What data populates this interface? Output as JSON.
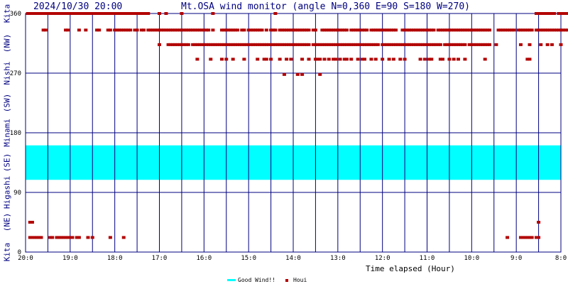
{
  "header": {
    "datetime": "2024/10/30 20:00",
    "title": "Mt.OSA wind monitor (angle N=0,360 E=90 S=180 W=270)"
  },
  "direction_labels": [
    {
      "text": "Kita",
      "y": 360
    },
    {
      "text": "(NW)",
      "y": 315
    },
    {
      "text": "Nishi",
      "y": 270
    },
    {
      "text": "(SW)",
      "y": 225
    },
    {
      "text": "Minami",
      "y": 180
    },
    {
      "text": "(SE)",
      "y": 135
    },
    {
      "text": "Higashi",
      "y": 90
    },
    {
      "text": "(NE)",
      "y": 45
    },
    {
      "text": "Kita",
      "y": 0
    }
  ],
  "chart_data": {
    "type": "scatter",
    "xlabel": "Time elapsed (Hour)",
    "ylabel": "",
    "xlim": [
      0,
      12
    ],
    "ylim": [
      0,
      360
    ],
    "x_ticks": [
      {
        "x": 0,
        "label": "20:0"
      },
      {
        "x": 1,
        "label": "19:0"
      },
      {
        "x": 2,
        "label": "18:0"
      },
      {
        "x": 3,
        "label": "17:0"
      },
      {
        "x": 4,
        "label": "16:0"
      },
      {
        "x": 5,
        "label": "15:0"
      },
      {
        "x": 6,
        "label": "14:0"
      },
      {
        "x": 7,
        "label": "13:0"
      },
      {
        "x": 8,
        "label": "12:0"
      },
      {
        "x": 9,
        "label": "11:0"
      },
      {
        "x": 10,
        "label": "10:0"
      },
      {
        "x": 11,
        "label": "9:0"
      },
      {
        "x": 12,
        "label": "8:0"
      }
    ],
    "y_ticks": [
      0,
      90,
      180,
      270,
      360
    ],
    "good_band": {
      "name": "Good Wind!!",
      "y_from": 109,
      "y_to": 161,
      "color": "#00ffff"
    },
    "series": [
      {
        "name": "Houi",
        "color": "#b20000",
        "rows": [
          {
            "y": 360,
            "x": [
              0.05,
              0.1,
              0.15,
              0.2,
              0.25,
              0.3,
              0.35,
              0.4,
              0.45,
              0.5,
              0.55,
              0.6,
              0.65,
              0.7,
              0.75,
              0.8,
              0.85,
              0.9,
              0.95,
              1.0,
              1.05,
              1.1,
              1.15,
              1.2,
              1.25,
              1.3,
              1.35,
              1.4,
              1.45,
              1.5,
              1.55,
              1.6,
              1.65,
              1.7,
              1.75,
              1.8,
              1.85,
              1.9,
              1.95,
              2.0,
              2.05,
              2.1,
              2.15,
              2.2,
              2.25,
              2.3,
              2.35,
              2.4,
              2.45,
              2.5,
              2.55,
              2.6,
              2.65,
              2.7,
              2.75,
              3.0,
              3.15,
              3.5,
              4.2,
              5.6,
              11.45,
              11.5,
              11.55,
              11.6,
              11.65,
              11.7,
              11.75,
              11.8,
              11.85,
              11.95,
              12.0,
              12.05,
              12.1,
              12.15
            ]
          },
          {
            "y": 335,
            "x": [
              0.4,
              0.45,
              0.9,
              0.95,
              1.2,
              1.35,
              1.6,
              1.65,
              1.85,
              1.9,
              2.0,
              2.05,
              2.1,
              2.15,
              2.2,
              2.25,
              2.3,
              2.35,
              2.45,
              2.5,
              2.6,
              2.65,
              2.75,
              2.8,
              2.85,
              2.9,
              2.95,
              3.0,
              3.05,
              3.1,
              3.15,
              3.2,
              3.25,
              3.3,
              3.35,
              3.4,
              3.45,
              3.5,
              3.55,
              3.6,
              3.65,
              3.7,
              3.75,
              3.8,
              3.85,
              3.9,
              3.95,
              4.0,
              4.05,
              4.1,
              4.2,
              4.4,
              4.45,
              4.5,
              4.55,
              4.6,
              4.65,
              4.7,
              4.75,
              4.85,
              4.9,
              5.0,
              5.05,
              5.1,
              5.15,
              5.2,
              5.25,
              5.3,
              5.4,
              5.5,
              5.55,
              5.6,
              5.7,
              5.75,
              5.8,
              5.85,
              5.9,
              5.95,
              6.0,
              6.05,
              6.1,
              6.15,
              6.2,
              6.25,
              6.3,
              6.35,
              6.45,
              6.5,
              6.65,
              6.7,
              6.75,
              6.8,
              6.85,
              6.9,
              6.95,
              7.0,
              7.05,
              7.1,
              7.15,
              7.2,
              7.3,
              7.35,
              7.4,
              7.45,
              7.5,
              7.55,
              7.6,
              7.65,
              7.75,
              7.8,
              7.85,
              7.9,
              7.95,
              8.0,
              8.05,
              8.1,
              8.15,
              8.2,
              8.25,
              8.3,
              8.45,
              8.5,
              8.55,
              8.6,
              8.65,
              8.7,
              8.75,
              8.8,
              8.85,
              8.9,
              8.95,
              9.0,
              9.05,
              9.1,
              9.15,
              9.25,
              9.3,
              9.35,
              9.4,
              9.45,
              9.5,
              9.55,
              9.6,
              9.65,
              9.7,
              9.75,
              9.8,
              9.85,
              9.9,
              9.95,
              10.0,
              10.05,
              10.1,
              10.15,
              10.2,
              10.25,
              10.3,
              10.35,
              10.4,
              10.6,
              10.65,
              10.7,
              10.75,
              10.8,
              10.85,
              10.9,
              10.95,
              11.05,
              11.1,
              11.15,
              11.2,
              11.25,
              11.3,
              11.35,
              11.45,
              11.5,
              11.55,
              11.6,
              11.65,
              11.7,
              11.75,
              11.8,
              11.85,
              11.9,
              11.95,
              12.0,
              12.05,
              12.1,
              12.15
            ]
          },
          {
            "y": 313,
            "x": [
              3.0,
              3.2,
              3.25,
              3.3,
              3.35,
              3.4,
              3.45,
              3.5,
              3.55,
              3.6,
              3.65,
              3.75,
              3.8,
              3.85,
              3.9,
              3.95,
              4.0,
              4.05,
              4.1,
              4.15,
              4.2,
              4.25,
              4.3,
              4.35,
              4.4,
              4.45,
              4.5,
              4.55,
              4.6,
              4.65,
              4.7,
              4.75,
              4.8,
              4.85,
              4.9,
              4.95,
              5.0,
              5.05,
              5.1,
              5.15,
              5.2,
              5.25,
              5.3,
              5.35,
              5.4,
              5.45,
              5.5,
              5.55,
              5.6,
              5.65,
              5.7,
              5.75,
              5.8,
              5.85,
              5.9,
              5.95,
              6.0,
              6.05,
              6.1,
              6.15,
              6.2,
              6.25,
              6.3,
              6.35,
              6.45,
              6.5,
              6.55,
              6.6,
              6.65,
              6.7,
              6.75,
              6.8,
              6.85,
              6.9,
              6.95,
              7.0,
              7.05,
              7.1,
              7.15,
              7.2,
              7.25,
              7.3,
              7.35,
              7.4,
              7.45,
              7.5,
              7.55,
              7.6,
              7.65,
              7.7,
              7.75,
              7.8,
              7.85,
              7.9,
              8.0,
              8.05,
              8.1,
              8.15,
              8.2,
              8.25,
              8.3,
              8.35,
              8.4,
              8.45,
              8.5,
              8.55,
              8.6,
              8.65,
              8.7,
              8.75,
              8.8,
              8.85,
              8.9,
              8.95,
              9.0,
              9.05,
              9.1,
              9.15,
              9.2,
              9.25,
              9.3,
              9.4,
              9.45,
              9.5,
              9.55,
              9.6,
              9.65,
              9.7,
              9.75,
              9.8,
              9.85,
              9.95,
              10.0,
              10.05,
              10.1,
              10.15,
              10.2,
              10.25,
              10.3,
              10.35,
              10.4,
              10.55,
              11.1,
              11.3,
              11.55,
              11.7,
              11.8,
              12.0
            ]
          },
          {
            "y": 291,
            "x": [
              3.85,
              4.15,
              4.4,
              4.5,
              4.65,
              4.9,
              5.2,
              5.35,
              5.4,
              5.5,
              5.7,
              5.85,
              5.95,
              6.2,
              6.35,
              6.5,
              6.55,
              6.6,
              6.7,
              6.8,
              6.9,
              6.95,
              7.05,
              7.15,
              7.2,
              7.3,
              7.45,
              7.55,
              7.6,
              7.75,
              7.85,
              8.0,
              8.15,
              8.25,
              8.4,
              8.5,
              8.85,
              8.95,
              9.05,
              9.1,
              9.3,
              9.35,
              9.5,
              9.6,
              9.7,
              9.85,
              10.3,
              11.25,
              11.3
            ]
          },
          {
            "y": 268,
            "x": [
              5.8,
              6.1,
              6.2,
              6.6
            ]
          },
          {
            "y": 45,
            "x": [
              0.1,
              0.15
            ]
          },
          {
            "y": 22,
            "x": [
              0.1,
              0.15,
              0.2,
              0.25,
              0.3,
              0.35,
              0.55,
              0.6,
              0.7,
              0.75,
              0.8,
              0.85,
              0.9,
              0.95,
              1.0,
              1.05,
              1.15,
              1.2,
              1.4,
              1.5,
              1.9,
              2.2,
              10.8,
              11.1,
              11.15,
              11.2,
              11.25,
              11.3,
              11.35,
              11.45,
              11.5
            ]
          },
          {
            "y": 45,
            "x": [
              11.5
            ]
          }
        ]
      }
    ],
    "grid": true,
    "legend": "bottom-center"
  }
}
